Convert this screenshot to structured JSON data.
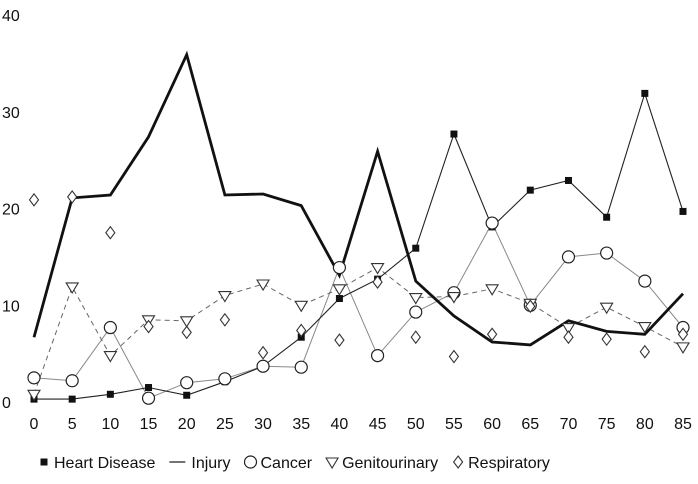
{
  "chart_data": {
    "type": "line",
    "title": "",
    "xlabel": "",
    "ylabel": "",
    "x": [
      0,
      5,
      10,
      15,
      20,
      25,
      30,
      35,
      40,
      45,
      50,
      55,
      60,
      65,
      70,
      75,
      80,
      85
    ],
    "xticks": [
      "0",
      "5",
      "10",
      "15",
      "20",
      "25",
      "30",
      "35",
      "40",
      "45",
      "50",
      "55",
      "60",
      "65",
      "70",
      "75",
      "80",
      "85"
    ],
    "yticks": [
      "0",
      "10",
      "20",
      "30",
      "40"
    ],
    "ylim": [
      0,
      40
    ],
    "grid": false,
    "legend_position": "bottom",
    "series": [
      {
        "name": "Heart Disease",
        "marker": "filled-square",
        "line": "solid-thin",
        "values": [
          0.4,
          0.4,
          0.9,
          1.6,
          0.8,
          2.2,
          3.8,
          6.8,
          10.8,
          12.8,
          16.0,
          27.8,
          18.2,
          22.0,
          23.0,
          19.2,
          32.0,
          19.8
        ]
      },
      {
        "name": "Injury",
        "marker": "none",
        "line": "solid-thick",
        "values": [
          6.8,
          21.2,
          21.5,
          27.5,
          36.0,
          21.5,
          21.6,
          20.4,
          13.2,
          26.0,
          12.6,
          9.0,
          6.3,
          6.0,
          8.5,
          7.4,
          7.1,
          11.3
        ]
      },
      {
        "name": "Cancer",
        "marker": "open-circle",
        "line": "solid-light",
        "values": [
          2.6,
          2.3,
          7.8,
          0.5,
          2.1,
          2.5,
          3.8,
          3.7,
          14.0,
          4.9,
          9.4,
          11.4,
          18.6,
          10.1,
          15.1,
          15.5,
          12.6,
          7.8
        ]
      },
      {
        "name": "Genitourinary",
        "marker": "open-triangle-down",
        "line": "dashed",
        "values": [
          0.9,
          12.0,
          4.9,
          8.6,
          8.5,
          11.1,
          12.3,
          10.1,
          11.8,
          14.0,
          10.9,
          11.0,
          11.8,
          10.3,
          7.8,
          9.9,
          7.9,
          5.8
        ]
      },
      {
        "name": "Respiratory",
        "marker": "open-diamond",
        "line": "none",
        "values": [
          21.0,
          21.3,
          17.6,
          7.9,
          7.3,
          8.6,
          5.2,
          7.5,
          6.5,
          12.5,
          6.8,
          4.8,
          7.1,
          10.0,
          6.8,
          6.6,
          5.3,
          7.1
        ]
      }
    ]
  }
}
